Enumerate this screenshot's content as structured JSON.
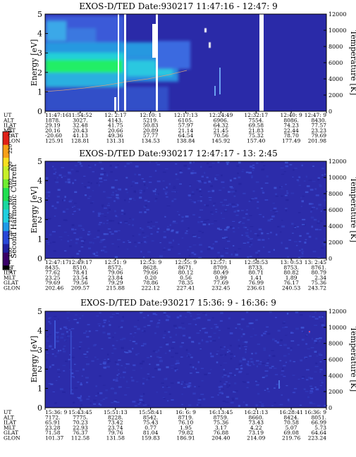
{
  "chart_data": [
    {
      "type": "heatmap",
      "title": "EXOS-D/TED   Date:930217  11:47:16 - 12:47: 9",
      "ylabel": "Energy [eV]",
      "y2label": "Temperature [K]",
      "ylim": [
        0,
        5
      ],
      "y2lim": [
        0,
        12000
      ],
      "yticks": [
        0,
        1,
        2,
        3,
        4,
        5
      ],
      "y2ticks": [
        0,
        2000,
        4000,
        6000,
        8000,
        10000,
        12000
      ],
      "row_labels": [
        "UT",
        "ALT",
        "ILAT",
        "MLT",
        "GLAT",
        "GLON"
      ],
      "columns": [
        [
          "11:47:16",
          "1878.",
          "29.19",
          "20.16",
          "-20.60",
          "125.91"
        ],
        [
          "11:54:52",
          "3027.",
          "32.48",
          "20.43",
          "41.13",
          "128.81"
        ],
        [
          "12: 2:17",
          "4143.",
          "41.75",
          "20.66",
          "49.36",
          "131.31"
        ],
        [
          "12:10: 1",
          "5219.",
          "50.83",
          "20.89",
          "57.77",
          "134.53"
        ],
        [
          "12:17:13",
          "6105.",
          "57.97",
          "21.14",
          "64.54",
          "138.84"
        ],
        [
          "12:24:49",
          "6906.",
          "64.32",
          "21.45",
          "70.56",
          "145.92"
        ],
        [
          "12:32:17",
          "7554.",
          "69.58",
          "21.83",
          "75.32",
          "157.40"
        ],
        [
          "12:40: 9",
          "8086.",
          "74.23",
          "22.44",
          "78.70",
          "177.49"
        ],
        [
          "12:47: 9",
          "8430.",
          "77.57",
          "23.23",
          "79.69",
          "201.98"
        ]
      ]
    },
    {
      "type": "heatmap",
      "title": "EXOS-D/TED   Date:930217  12:47:17 - 13: 2:45",
      "ylabel": "Energy [eV]",
      "y2label": "Temperature [K]",
      "ylim": [
        0,
        5
      ],
      "y2lim": [
        0,
        12000
      ],
      "yticks": [
        0,
        1,
        2,
        3,
        4,
        5
      ],
      "y2ticks": [
        0,
        2000,
        4000,
        6000,
        8000,
        10000,
        12000
      ],
      "row_labels": [
        "UT",
        "ALT",
        "ILAT",
        "MLT",
        "GLAT",
        "GLON"
      ],
      "columns": [
        [
          "12:47:17",
          "8435.",
          "77.62",
          "23.25",
          "79.69",
          "202.46"
        ],
        [
          "12:49:17",
          "8510.",
          "78.41",
          "23.54",
          "79.56",
          "209.57"
        ],
        [
          "12:51: 9",
          "8572.",
          "79.06",
          "23.84",
          "79.29",
          "215.88"
        ],
        [
          "12:53: 9",
          "8628.",
          "79.66",
          "0.20",
          "78.86",
          "222.12"
        ],
        [
          "12:55: 9",
          "8671.",
          "80.12",
          "0.56",
          "78.35",
          "227.41"
        ],
        [
          "12:57: 1",
          "8709.",
          "80.49",
          "0.99",
          "77.69",
          "232.45"
        ],
        [
          "12:58:53",
          "8733.",
          "80.71",
          "1.41",
          "76.99",
          "236.61"
        ],
        [
          "13: 0:53",
          "8753.",
          "80.82",
          "1.89",
          "76.17",
          "240.53"
        ],
        [
          "13: 2:45",
          "8761.",
          "80.79",
          "2.34",
          "75.36",
          "243.72"
        ]
      ]
    },
    {
      "type": "heatmap",
      "title": "EXOS-D/TED   Date:930217  15:36: 9 - 16:36: 9",
      "ylabel": "Energy [eV]",
      "y2label": "Temperature [K]",
      "ylim": [
        0,
        5
      ],
      "y2lim": [
        0,
        12000
      ],
      "yticks": [
        0,
        1,
        2,
        3,
        4,
        5
      ],
      "y2ticks": [
        0,
        2000,
        4000,
        6000,
        8000,
        10000,
        12000
      ],
      "row_labels": [
        "UT",
        "ALT",
        "ILAT",
        "MLT",
        "GLAT",
        "GLON"
      ],
      "columns": [
        [
          "15:36: 9",
          "7172.",
          "65.91",
          "23.28",
          "71.58",
          "101.37"
        ],
        [
          "15:43:45",
          "7775.",
          "70.23",
          "22.93",
          "76.37",
          "112.58"
        ],
        [
          "15:51:13",
          "8228.",
          "73.42",
          "23.74",
          "79.76",
          "131.58"
        ],
        [
          "15:58:41",
          "8542.",
          "75.43",
          "0.77",
          "81.04",
          "159.83"
        ],
        [
          "16: 6: 9",
          "8719.",
          "76.10",
          "1.95",
          "79.82",
          "186.91"
        ],
        [
          "16:13:45",
          "8759.",
          "75.36",
          "3.17",
          "76.88",
          "204.40"
        ],
        [
          "16:21:13",
          "8660.",
          "73.43",
          "4.22",
          "73.19",
          "214.09"
        ],
        [
          "16:28:41",
          "8424.",
          "70.58",
          "5.07",
          "69.08",
          "219.76"
        ],
        [
          "16:36: 9",
          "8051.",
          "66.99",
          "5.73",
          "64.64",
          "223.24"
        ]
      ]
    }
  ],
  "colorbar": {
    "label": "Second Harmonic Current",
    "ticks": [
      80,
      100,
      120,
      140,
      160,
      180,
      200,
      220,
      240
    ],
    "range": [
      80,
      240
    ]
  },
  "colors": {
    "background_dark_blue": "#2a2aa8",
    "blue": "#3a55d8",
    "cyan": "#28c8e0",
    "green": "#22ee66",
    "white_gap": "#ffffff"
  }
}
